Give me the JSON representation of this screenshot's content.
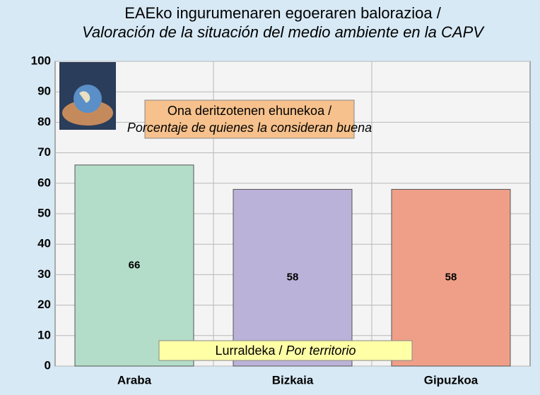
{
  "chart_data": {
    "type": "bar",
    "title": "EAEko ingurumenaren egoeraren balorazioa /",
    "subtitle": "Valoración de la situación del medio ambiente en la CAPV",
    "annotation": [
      "Ona deritzotenen ehunekoa /",
      "Porcentaje de quienes la consideran buena"
    ],
    "x_label": [
      "Lurraldeka /",
      "Por territorio"
    ],
    "categories": [
      "Araba",
      "Bizkaia",
      "Gipuzkoa"
    ],
    "values": [
      66,
      58,
      58
    ],
    "colors": [
      "#b3ddc8",
      "#bbb2d9",
      "#ef9f88"
    ],
    "ylim": [
      0,
      100
    ],
    "yticks": [
      0,
      10,
      20,
      30,
      40,
      50,
      60,
      70,
      80,
      90,
      100
    ],
    "grid": true
  }
}
